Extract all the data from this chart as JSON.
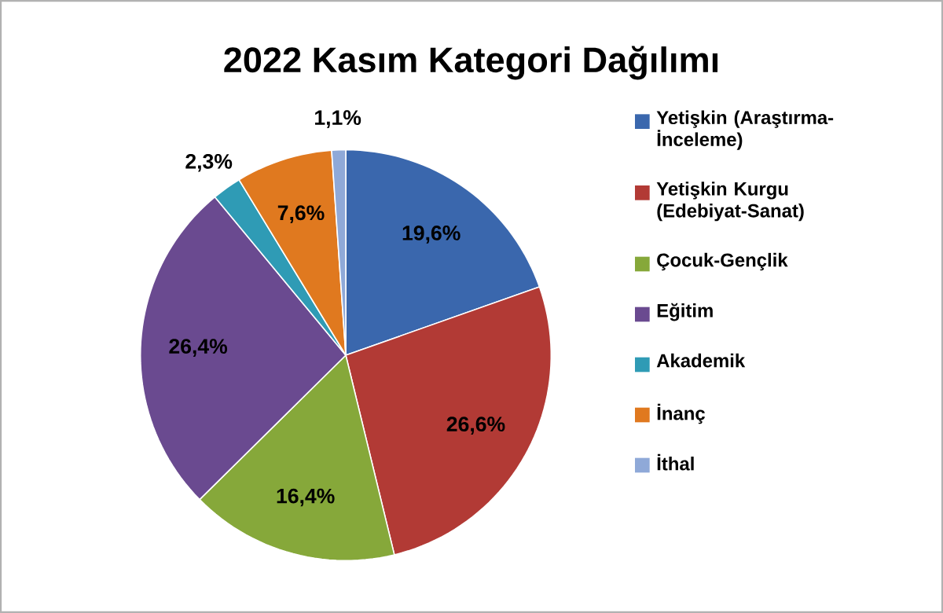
{
  "chart_data": {
    "type": "pie",
    "title": "2022 Kasım Kategori Dağılımı",
    "categories": [
      "Yetişkin (Araştırma-İnceleme)",
      "Yetişkin Kurgu (Edebiyat-Sanat)",
      "Çocuk-Gençlik",
      "Eğitim",
      "Akademik",
      "İnanç",
      "İthal"
    ],
    "values": [
      19.6,
      26.6,
      16.4,
      26.4,
      2.3,
      7.6,
      1.1
    ],
    "value_labels": [
      "19,6%",
      "26,6%",
      "16,4%",
      "26,4%",
      "2,3%",
      "7,6%",
      "1,1%"
    ],
    "colors": [
      "#3a67ad",
      "#b23a35",
      "#86a83a",
      "#6a4a90",
      "#2f9bb5",
      "#e0791f",
      "#8fa9d8"
    ],
    "legend": "right"
  }
}
